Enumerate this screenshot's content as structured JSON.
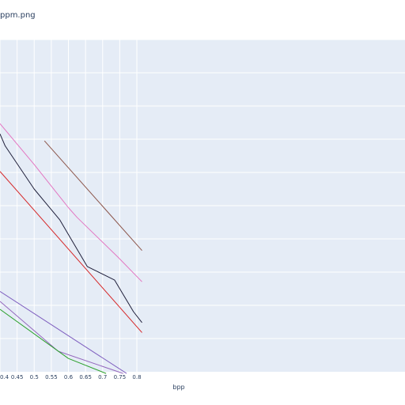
{
  "title": "ppm.png",
  "chart_data": {
    "type": "line",
    "title": "ppm.png",
    "xlabel": "bpp",
    "ylabel": "",
    "xlim": [
      0.4,
      0.815
    ],
    "ylim": [
      0.0,
      1.0
    ],
    "xticks": [
      0.4,
      0.45,
      0.5,
      0.55,
      0.6,
      0.65,
      0.7,
      0.75,
      0.8
    ],
    "xtick_labels": [
      "0.4",
      "0.45",
      "0.5",
      "0.55",
      "0.6",
      "0.65",
      "0.7",
      "0.75",
      "0.8"
    ],
    "yticks": [
      0.1,
      0.2,
      0.3,
      0.4,
      0.5,
      0.6,
      0.7,
      0.8,
      0.9,
      1.0
    ],
    "grid": true,
    "series": [
      {
        "color": "#8c564b",
        "x": [
          0.53,
          0.815
        ],
        "y": [
          0.695,
          0.365
        ]
      },
      {
        "color": "#e377c2",
        "x": [
          0.4,
          0.5,
          0.6,
          0.625,
          0.745,
          0.815
        ],
        "y": [
          0.747,
          0.624,
          0.494,
          0.465,
          0.345,
          0.271
        ]
      },
      {
        "color": "#1f1f3a",
        "x": [
          0.4,
          0.415,
          0.5,
          0.575,
          0.6,
          0.655,
          0.735,
          0.79,
          0.815
        ],
        "y": [
          0.716,
          0.68,
          0.55,
          0.457,
          0.413,
          0.317,
          0.276,
          0.181,
          0.148
        ]
      },
      {
        "color": "#d62728",
        "x": [
          0.4,
          0.815
        ],
        "y": [
          0.603,
          0.118
        ]
      },
      {
        "color": "#7f5fbf",
        "x": [
          0.4,
          0.77
        ],
        "y": [
          0.242,
          -0.005
        ]
      },
      {
        "color": "#9467bd",
        "x": [
          0.4,
          0.57,
          0.76
        ],
        "y": [
          0.212,
          0.062,
          -0.005
        ]
      },
      {
        "color": "#2ca02c",
        "x": [
          0.4,
          0.6,
          0.71
        ],
        "y": [
          0.188,
          0.04,
          -0.005
        ]
      }
    ]
  }
}
